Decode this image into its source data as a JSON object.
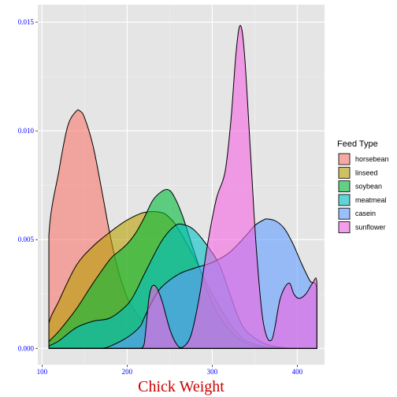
{
  "chart_data": {
    "type": "area",
    "subtype": "density",
    "xlabel": "Chick Weight",
    "ylabel": "",
    "xlim": [
      95,
      432
    ],
    "ylim": [
      -0.00075,
      0.0158
    ],
    "x_ticks": [
      100,
      200,
      300,
      400
    ],
    "y_ticks": [
      0.0,
      0.005,
      0.01,
      0.015
    ],
    "y_tick_labels": [
      "0.000",
      "0.005",
      "0.010",
      "0.015"
    ],
    "grid": true,
    "legend": {
      "title": "Feed Type",
      "position": "right"
    },
    "series": [
      {
        "name": "horsebean",
        "color": "#F8766D",
        "x": [
          108,
          108,
          120,
          130,
          140,
          145,
          150,
          160,
          170,
          180,
          190,
          200,
          205,
          210,
          220,
          230,
          240,
          250,
          260,
          280,
          300,
          320,
          340,
          360,
          380,
          400,
          423
        ],
        "y": [
          0,
          0.0052,
          0.0082,
          0.0102,
          0.0109,
          0.0109,
          0.0106,
          0.0093,
          0.0073,
          0.0052,
          0.0035,
          0.00235,
          0.002,
          0.0017,
          0.0011,
          0.0006,
          0.0003,
          0.00012,
          4e-05,
          0,
          0,
          0,
          0,
          0,
          0,
          0,
          0
        ]
      },
      {
        "name": "linseed",
        "color": "#B79F00",
        "x": [
          108,
          108,
          120,
          140,
          160,
          180,
          200,
          220,
          240,
          250,
          260,
          280,
          300,
          320,
          330,
          340,
          360,
          380,
          400,
          423
        ],
        "y": [
          0,
          0.00115,
          0.0022,
          0.0038,
          0.0047,
          0.00535,
          0.0059,
          0.00625,
          0.00625,
          0.006,
          0.0055,
          0.0041,
          0.0025,
          0.0012,
          0.0007,
          0.00035,
          0.0001,
          2e-05,
          0,
          0
        ]
      },
      {
        "name": "soybean",
        "color": "#00BA38",
        "x": [
          108,
          108,
          120,
          140,
          160,
          180,
          190,
          200,
          210,
          220,
          230,
          240,
          248,
          255,
          265,
          280,
          300,
          320,
          340,
          360,
          380,
          400,
          423
        ],
        "y": [
          0,
          0.0003,
          0.0008,
          0.0018,
          0.003,
          0.0041,
          0.00445,
          0.0048,
          0.0053,
          0.006,
          0.0068,
          0.0072,
          0.0073,
          0.007,
          0.0061,
          0.0043,
          0.0021,
          0.00085,
          0.00025,
          5e-05,
          0,
          0,
          0
        ]
      },
      {
        "name": "meatmeal",
        "color": "#00BFC4",
        "x": [
          108,
          108,
          120,
          140,
          160,
          180,
          200,
          210,
          220,
          240,
          255,
          265,
          280,
          300,
          310,
          320,
          330,
          340,
          360,
          380,
          400,
          423
        ],
        "y": [
          0,
          0.0001,
          0.00035,
          0.00095,
          0.00125,
          0.0014,
          0.002,
          0.0026,
          0.0034,
          0.0049,
          0.0056,
          0.0057,
          0.0054,
          0.0044,
          0.0037,
          0.0026,
          0.0015,
          0.0008,
          0.00025,
          5e-05,
          0,
          0
        ]
      },
      {
        "name": "casein",
        "color": "#619CFF",
        "x": [
          108,
          108,
          140,
          160,
          170,
          180,
          200,
          215,
          220,
          230,
          240,
          260,
          280,
          300,
          320,
          340,
          350,
          360,
          365,
          375,
          385,
          395,
          405,
          415,
          423,
          423
        ],
        "y": [
          0,
          0,
          0,
          0,
          0,
          0.0001,
          0.0005,
          0.001,
          0.0014,
          0.0022,
          0.0028,
          0.0034,
          0.0037,
          0.00395,
          0.0044,
          0.0052,
          0.00565,
          0.0059,
          0.00595,
          0.00585,
          0.0055,
          0.0048,
          0.0039,
          0.0031,
          0.0027,
          0
        ]
      },
      {
        "name": "sunflower",
        "color": "#F564E3",
        "x": [
          108,
          108,
          200,
          215,
          220,
          226,
          232,
          240,
          250,
          258,
          265,
          275,
          285,
          295,
          305,
          315,
          322,
          328,
          333,
          338,
          345,
          352,
          360,
          370,
          380,
          390,
          396,
          402,
          410,
          418,
          423,
          423
        ],
        "y": [
          0,
          0,
          0,
          0,
          0.0002,
          0.0024,
          0.0029,
          0.0023,
          0.0009,
          0.0002,
          5e-05,
          0.0006,
          0.0024,
          0.0049,
          0.0069,
          0.0081,
          0.0105,
          0.0136,
          0.01485,
          0.0135,
          0.009,
          0.0045,
          0.0012,
          0.0004,
          0.0023,
          0.003,
          0.0025,
          0.0023,
          0.0025,
          0.003,
          0.003,
          0
        ]
      }
    ]
  }
}
